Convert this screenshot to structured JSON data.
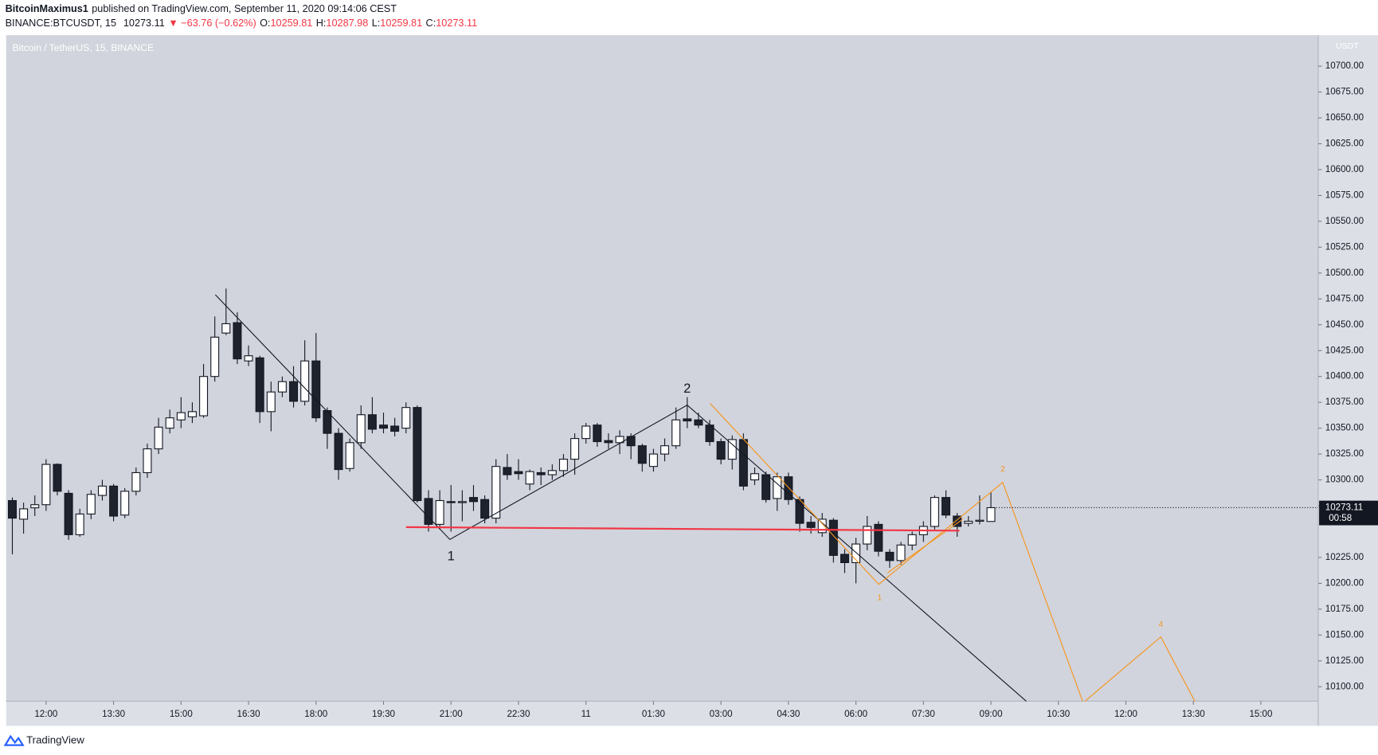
{
  "header": {
    "author": "BitcoinMaximus1",
    "published": "published on TradingView.com, September 11, 2020 09:14:06 CEST",
    "symbol": "BINANCE:BTCUSDT, 15",
    "price": "10273.11",
    "change": "▼ −63.76 (−0.62%)",
    "ohlc": [
      {
        "label": "O:",
        "value": "10259.81"
      },
      {
        "label": "H:",
        "value": "10287.98"
      },
      {
        "label": "L:",
        "value": "10259.81"
      },
      {
        "label": "C:",
        "value": "10273.11"
      }
    ]
  },
  "footer": {
    "brand": "TradingView"
  },
  "chart_data": {
    "type": "candlestick",
    "legend": "Bitcoin / TetherUS, 15, BINANCE",
    "axis_unit": "USDT",
    "countdown": "00:58",
    "up_color": "#ffffff",
    "down_color": "#1e222d",
    "background": "#d1d4dc",
    "xlim": [
      -0.55,
      116.1
    ],
    "ylim": [
      10086,
      10730
    ],
    "xticks": [
      {
        "value": 3,
        "label": "12:00"
      },
      {
        "value": 9,
        "label": "13:30"
      },
      {
        "value": 15,
        "label": "15:00"
      },
      {
        "value": 21,
        "label": "16:30"
      },
      {
        "value": 27,
        "label": "18:00"
      },
      {
        "value": 33,
        "label": "19:30"
      },
      {
        "value": 39,
        "label": "21:00"
      },
      {
        "value": 45,
        "label": "22:30"
      },
      {
        "value": 51,
        "label": "11"
      },
      {
        "value": 57,
        "label": "01:30"
      },
      {
        "value": 63,
        "label": "03:00"
      },
      {
        "value": 69,
        "label": "04:30"
      },
      {
        "value": 75,
        "label": "06:00"
      },
      {
        "value": 81,
        "label": "07:30"
      },
      {
        "value": 87,
        "label": "09:00"
      },
      {
        "value": 93,
        "label": "10:30"
      },
      {
        "value": 99,
        "label": "12:00"
      },
      {
        "value": 105,
        "label": "13:30"
      },
      {
        "value": 111,
        "label": "15:00"
      }
    ],
    "yticks": [
      {
        "value": 10100,
        "label": "10100.00"
      },
      {
        "value": 10125,
        "label": "10125.00"
      },
      {
        "value": 10150,
        "label": "10150.00"
      },
      {
        "value": 10175,
        "label": "10175.00"
      },
      {
        "value": 10200,
        "label": "10200.00"
      },
      {
        "value": 10225,
        "label": "10225.00"
      },
      {
        "value": 10275,
        "label": "10275.00"
      },
      {
        "value": 10300,
        "label": "10300.00"
      },
      {
        "value": 10325,
        "label": "10325.00"
      },
      {
        "value": 10350,
        "label": "10350.00"
      },
      {
        "value": 10375,
        "label": "10375.00"
      },
      {
        "value": 10400,
        "label": "10400.00"
      },
      {
        "value": 10425,
        "label": "10425.00"
      },
      {
        "value": 10450,
        "label": "10450.00"
      },
      {
        "value": 10475,
        "label": "10475.00"
      },
      {
        "value": 10500,
        "label": "10500.00"
      },
      {
        "value": 10525,
        "label": "10525.00"
      },
      {
        "value": 10550,
        "label": "10550.00"
      },
      {
        "value": 10575,
        "label": "10575.00"
      },
      {
        "value": 10600,
        "label": "10600.00"
      },
      {
        "value": 10625,
        "label": "10625.00"
      },
      {
        "value": 10650,
        "label": "10650.00"
      },
      {
        "value": 10675,
        "label": "10675.00"
      },
      {
        "value": 10700,
        "label": "10700.00"
      }
    ],
    "open": [
      10280,
      10262,
      10273,
      10276,
      10315,
      10287,
      10247,
      10267,
      10285,
      10294,
      10266,
      10289,
      10307,
      10330,
      10350,
      10358,
      10361,
      10362,
      10400,
      10442,
      10452,
      10415,
      10418,
      10366,
      10385,
      10395,
      10376,
      10415,
      10367,
      10345,
      10311,
      10336,
      10363,
      10353,
      10352,
      10350,
      10370,
      10282,
      10257,
      10279,
      10278,
      10283,
      10281,
      10263,
      10312,
      10308,
      10296,
      10307,
      10305,
      10309,
      10320,
      10340,
      10353,
      10338,
      10336,
      10342,
      10333,
      10313,
      10325,
      10333,
      10359,
      10358,
      10353,
      10337,
      10320,
      10339,
      10300,
      10305,
      10282,
      10303,
      10281,
      10259,
      10249,
      10261,
      10228,
      10220,
      10238,
      10257,
      10230,
      10222,
      10237,
      10247,
      10255,
      10283,
      10265,
      10258,
      10260,
      10259.81
    ],
    "high": [
      10283,
      10278,
      10285,
      10320,
      10316,
      10290,
      10272,
      10290,
      10300,
      10296,
      10292,
      10312,
      10335,
      10360,
      10368,
      10380,
      10375,
      10412,
      10458,
      10485,
      10462,
      10430,
      10420,
      10395,
      10400,
      10410,
      10435,
      10442,
      10370,
      10350,
      10340,
      10372,
      10380,
      10365,
      10360,
      10375,
      10372,
      10290,
      10290,
      10295,
      10290,
      10295,
      10285,
      10320,
      10325,
      10320,
      10310,
      10312,
      10315,
      10325,
      10345,
      10355,
      10355,
      10345,
      10348,
      10345,
      10335,
      10330,
      10340,
      10370,
      10380,
      10365,
      10358,
      10340,
      10343,
      10345,
      10312,
      10308,
      10307,
      10307,
      10284,
      10265,
      10268,
      10263,
      10233,
      10244,
      10265,
      10260,
      10233,
      10240,
      10250,
      10260,
      10285,
      10290,
      10268,
      10265,
      10285,
      10287.98
    ],
    "low": [
      10228,
      10248,
      10265,
      10270,
      10285,
      10242,
      10245,
      10262,
      10280,
      10260,
      10263,
      10285,
      10302,
      10325,
      10345,
      10350,
      10355,
      10360,
      10395,
      10440,
      10412,
      10410,
      10355,
      10347,
      10380,
      10370,
      10372,
      10356,
      10330,
      10300,
      10308,
      10330,
      10345,
      10345,
      10342,
      10345,
      10278,
      10250,
      10252,
      10250,
      10260,
      10270,
      10258,
      10258,
      10300,
      10300,
      10290,
      10295,
      10300,
      10303,
      10305,
      10335,
      10332,
      10330,
      10325,
      10320,
      10308,
      10308,
      10318,
      10330,
      10350,
      10350,
      10333,
      10315,
      10310,
      10290,
      10295,
      10278,
      10270,
      10276,
      10250,
      10248,
      10245,
      10220,
      10210,
      10200,
      10232,
      10226,
      10215,
      10218,
      10232,
      10240,
      10252,
      10263,
      10245,
      10255,
      10257,
      10259.81
    ],
    "close": [
      10263,
      10272,
      10276,
      10315,
      10289,
      10247,
      10267,
      10286,
      10294,
      10265,
      10289,
      10307,
      10330,
      10351,
      10360,
      10365,
      10366,
      10400,
      10438,
      10451,
      10417,
      10420,
      10366,
      10385,
      10395,
      10376,
      10415,
      10360,
      10345,
      10310,
      10336,
      10363,
      10349,
      10350,
      10347,
      10370,
      10280,
      10257,
      10280,
      10278,
      10279,
      10279,
      10263,
      10313,
      10305,
      10306,
      10308,
      10305,
      10309,
      10320,
      10340,
      10352,
      10337,
      10336,
      10342,
      10333,
      10316,
      10325,
      10333,
      10358,
      10357,
      10353,
      10337,
      10320,
      10339,
      10294,
      10306,
      10281,
      10303,
      10281,
      10258,
      10254,
      10262,
      10227,
      10220,
      10238,
      10255,
      10231,
      10222,
      10237,
      10247,
      10255,
      10283,
      10266,
      10255,
      10260,
      10261,
      10273.11
    ],
    "drawings": [
      {
        "color": "#131722",
        "x": [
          18.05,
          38.9,
          60,
          90.3
        ],
        "y": [
          10479,
          10242.4,
          10372.3,
          10084.5
        ]
      },
      {
        "color": "#f7931a",
        "x": [
          62.03,
          77.03,
          88.05,
          95.2,
          102.1,
          105.2
        ],
        "y": [
          10374,
          10199,
          10297.6,
          10084.5,
          10148.2,
          10084.5
        ]
      },
      {
        "color": "#f7931a",
        "x": [
          77.8,
          84.5
        ],
        "y": [
          10210,
          10262
        ]
      },
      {
        "color": "#f23645",
        "x": [
          35,
          84.2
        ],
        "y": [
          10254.3,
          10250.9
        ]
      }
    ],
    "annotations": [
      {
        "text": "1",
        "color": "#131722",
        "x": 39,
        "y": 10225.5
      },
      {
        "text": "2",
        "color": "#131722",
        "x": 60,
        "y": 10387.6
      },
      {
        "text": "1",
        "color": "#f7931a",
        "x": 77.1,
        "y": 10185.6
      },
      {
        "text": "2",
        "color": "#f7931a",
        "x": 88.05,
        "y": 10310
      },
      {
        "text": "4",
        "color": "#f7931a",
        "x": 102.1,
        "y": 10160
      }
    ]
  }
}
